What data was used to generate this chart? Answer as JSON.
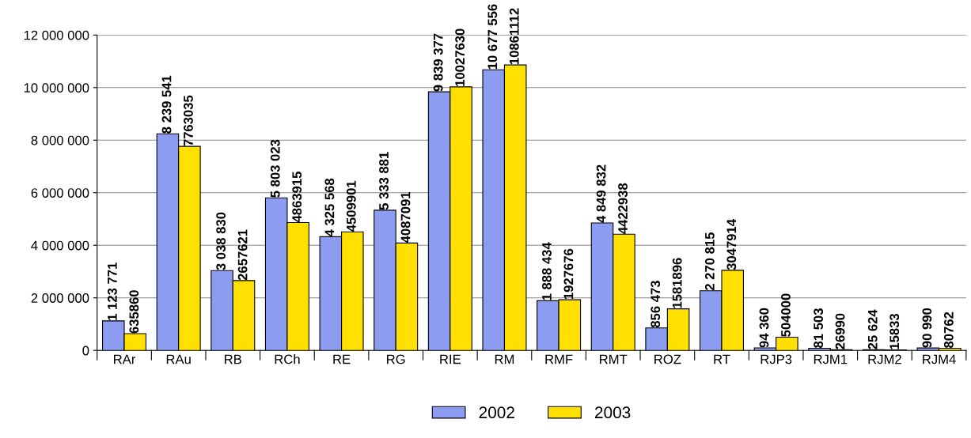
{
  "chart_data": {
    "type": "bar",
    "categories": [
      "RAr",
      "RAu",
      "RB",
      "RCh",
      "RE",
      "RG",
      "RIE",
      "RM",
      "RMF",
      "RMT",
      "ROZ",
      "RT",
      "RJP3",
      "RJM1",
      "RJM2",
      "RJM4"
    ],
    "series": [
      {
        "name": "2002",
        "color": "#8c9cf0",
        "values": [
          1123771,
          8239541,
          3038830,
          5803023,
          4325568,
          5333881,
          9839377,
          10677556,
          1888434,
          4849832,
          856473,
          2270815,
          94360,
          81503,
          25624,
          90990
        ],
        "value_labels": [
          "1 123 771",
          "8 239 541",
          "3 038 830",
          "5 803 023",
          "4 325 568",
          "5 333 881",
          "9 839 377",
          "10 677 556",
          "1 888 434",
          "4 849 832",
          "856 473",
          "2 270 815",
          "94 360",
          "81 503",
          "25 624",
          "90 990"
        ]
      },
      {
        "name": "2003",
        "color": "#ffe000",
        "values": [
          635860,
          7763035,
          2657621,
          4863915,
          4509901,
          4087091,
          10027630,
          10861112,
          1927676,
          4422938,
          1581896,
          3047914,
          504000,
          26990,
          15833,
          80762
        ],
        "value_labels": [
          "635860",
          "7763035",
          "2657621",
          "4863915",
          "4509901",
          "4087091",
          "10027630",
          "10861112",
          "1927676",
          "4422938",
          "1581896",
          "3047914",
          "504000",
          "26990",
          "15833",
          "80762"
        ]
      }
    ],
    "ylim": [
      0,
      12000000
    ],
    "yticks": [
      {
        "value": 0,
        "label": "0"
      },
      {
        "value": 2000000,
        "label": "2 000 000"
      },
      {
        "value": 4000000,
        "label": "4 000 000"
      },
      {
        "value": 6000000,
        "label": "6 000 000"
      },
      {
        "value": 8000000,
        "label": "8 000 000"
      },
      {
        "value": 10000000,
        "label": "10 000 000"
      },
      {
        "value": 12000000,
        "label": "12 000 000"
      }
    ],
    "grid": "y",
    "legend": "bottom"
  }
}
